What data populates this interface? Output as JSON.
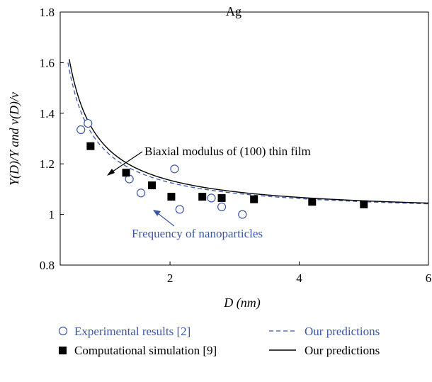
{
  "chart_data": {
    "type": "line",
    "title": "Ag",
    "xlabel": "D (nm)",
    "ylabel": "Y(D)/Y and ν(D)/ν",
    "xlim": [
      0.3,
      6
    ],
    "ylim": [
      0.8,
      1.8
    ],
    "xticks": [
      "2",
      "4",
      "6"
    ],
    "yticks": [
      "0.8",
      "1",
      "1.2",
      "1.4",
      "1.6",
      "1.8"
    ],
    "grid": false,
    "colors": {
      "blue": "#3a56a8",
      "black": "#000000"
    },
    "annotations": [
      {
        "text": "Biaxial modulus of (100) thin film",
        "color": "#000000"
      },
      {
        "text": "Frequency of nanoparticles",
        "color": "#3a56a8"
      }
    ],
    "series": [
      {
        "name": "Experimental results [2]",
        "style": "open-circle",
        "color": "#3a56a8",
        "points": [
          [
            0.62,
            1.335
          ],
          [
            0.73,
            1.36
          ],
          [
            1.37,
            1.14
          ],
          [
            1.55,
            1.085
          ],
          [
            2.07,
            1.18
          ],
          [
            2.15,
            1.02
          ],
          [
            2.64,
            1.065
          ],
          [
            2.8,
            1.03
          ],
          [
            3.12,
            1.0
          ]
        ]
      },
      {
        "name": "Computational simulation [9]",
        "style": "filled-square",
        "color": "#000000",
        "points": [
          [
            0.77,
            1.27
          ],
          [
            1.32,
            1.165
          ],
          [
            1.72,
            1.115
          ],
          [
            2.02,
            1.07
          ],
          [
            2.5,
            1.07
          ],
          [
            2.8,
            1.065
          ],
          [
            3.3,
            1.06
          ],
          [
            4.2,
            1.05
          ],
          [
            5.0,
            1.04
          ]
        ]
      },
      {
        "name": "Our predictions",
        "style": "dashed-line",
        "color": "#3a56a8",
        "k": 0.252,
        "x_start": 0.42,
        "x_end": 6.0
      },
      {
        "name": "Our predictions",
        "style": "solid-line",
        "color": "#000000",
        "k": 0.27,
        "x_start": 0.44,
        "x_end": 6.0
      }
    ]
  }
}
